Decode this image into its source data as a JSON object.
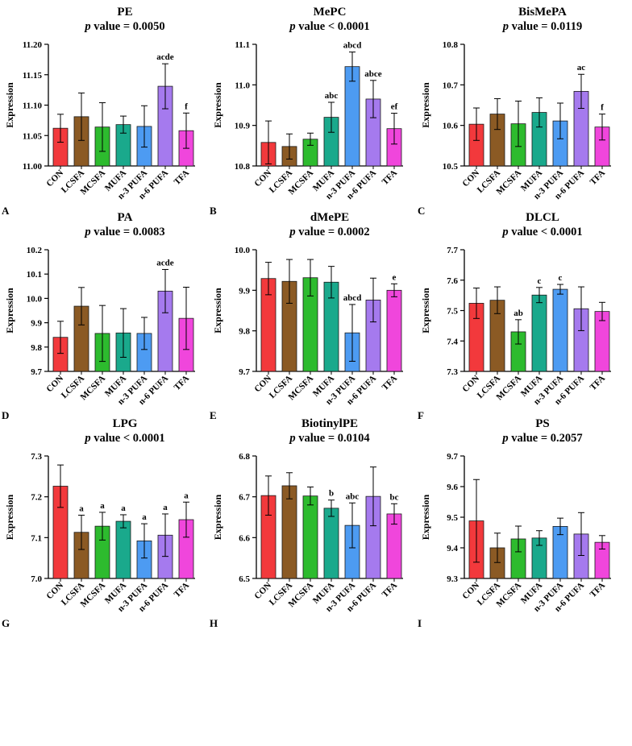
{
  "colors": [
    "#f2393c",
    "#8b5a24",
    "#2dbb2e",
    "#1aa98c",
    "#4d9bf2",
    "#a57aee",
    "#f046dc"
  ],
  "p_label": "p",
  "p_value_word": "value",
  "chart_data": [
    {
      "type": "bar",
      "panel": "A",
      "title": "PE",
      "p_text": "= 0.0050",
      "ylabel": "Expression",
      "categories": [
        "CON",
        "LCSFA",
        "MCSFA",
        "MUFA",
        "n-3 PUFA",
        "n-6 PUFA",
        "TFA"
      ],
      "values": [
        11.062,
        11.081,
        11.064,
        11.068,
        11.065,
        11.131,
        11.058
      ],
      "errors": [
        0.023,
        0.039,
        0.04,
        0.014,
        0.034,
        0.037,
        0.029
      ],
      "labels": [
        "",
        "",
        "",
        "",
        "",
        "acde",
        "f"
      ],
      "ylim": [
        11.0,
        11.2
      ],
      "yticks": [
        "11.00",
        "11.05",
        "11.10",
        "11.15",
        "11.20"
      ]
    },
    {
      "type": "bar",
      "panel": "B",
      "title": "MePC",
      "p_text": "< 0.0001",
      "ylabel": "Expression",
      "categories": [
        "CON",
        "LCSFA",
        "MCSFA",
        "MUFA",
        "n-3 PUFA",
        "n-6 PUFA",
        "TFA"
      ],
      "values": [
        10.858,
        10.848,
        10.866,
        10.92,
        11.045,
        10.965,
        10.892
      ],
      "errors": [
        0.053,
        0.031,
        0.015,
        0.037,
        0.036,
        0.046,
        0.038
      ],
      "labels": [
        "",
        "",
        "",
        "abc",
        "abcd",
        "abce",
        "ef"
      ],
      "ylim": [
        10.8,
        11.1
      ],
      "yticks": [
        "10.8",
        "10.9",
        "11.0",
        "11.1"
      ]
    },
    {
      "type": "bar",
      "panel": "C",
      "title": "BisMePA",
      "p_text": "= 0.0119",
      "ylabel": "Expression",
      "categories": [
        "CON",
        "LCSFA",
        "MCSFA",
        "MUFA",
        "n-3 PUFA",
        "n-6 PUFA",
        "TFA"
      ],
      "values": [
        10.603,
        10.628,
        10.604,
        10.632,
        10.611,
        10.684,
        10.596
      ],
      "errors": [
        0.04,
        0.038,
        0.056,
        0.036,
        0.044,
        0.042,
        0.032
      ],
      "labels": [
        "",
        "",
        "",
        "",
        "",
        "ac",
        "f"
      ],
      "ylim": [
        10.5,
        10.8
      ],
      "yticks": [
        "10.5",
        "10.6",
        "10.7",
        "10.8"
      ]
    },
    {
      "type": "bar",
      "panel": "D",
      "title": "PA",
      "p_text": "= 0.0083",
      "ylabel": "Expression",
      "categories": [
        "CON",
        "LCSFA",
        "MCSFA",
        "MUFA",
        "n-3 PUFA",
        "n-6 PUFA",
        "TFA"
      ],
      "values": [
        9.84,
        9.968,
        9.856,
        9.858,
        9.856,
        10.03,
        9.918
      ],
      "errors": [
        0.066,
        0.077,
        0.115,
        0.1,
        0.066,
        0.089,
        0.128
      ],
      "labels": [
        "",
        "",
        "",
        "",
        "",
        "acde",
        ""
      ],
      "ylim": [
        9.7,
        10.2
      ],
      "yticks": [
        "9.7",
        "9.8",
        "9.9",
        "10.0",
        "10.1",
        "10.2"
      ]
    },
    {
      "type": "bar",
      "panel": "E",
      "title": "dMePE",
      "p_text": "= 0.0002",
      "ylabel": "Expression",
      "categories": [
        "CON",
        "LCSFA",
        "MCSFA",
        "MUFA",
        "n-3 PUFA",
        "n-6 PUFA",
        "TFA"
      ],
      "values": [
        9.929,
        9.922,
        9.931,
        9.92,
        9.795,
        9.876,
        9.9
      ],
      "errors": [
        0.04,
        0.054,
        0.045,
        0.039,
        0.07,
        0.054,
        0.016
      ],
      "labels": [
        "",
        "",
        "",
        "",
        "abcd",
        "",
        "e"
      ],
      "ylim": [
        9.7,
        10.0
      ],
      "yticks": [
        "9.7",
        "9.8",
        "9.9",
        "10.0"
      ]
    },
    {
      "type": "bar",
      "panel": "F",
      "title": "DLCL",
      "p_text": "< 0.0001",
      "ylabel": "Expression",
      "categories": [
        "CON",
        "LCSFA",
        "MCSFA",
        "MUFA",
        "n-3 PUFA",
        "n-6 PUFA",
        "TFA"
      ],
      "values": [
        7.524,
        7.534,
        7.43,
        7.551,
        7.57,
        7.506,
        7.497
      ],
      "errors": [
        0.05,
        0.044,
        0.04,
        0.025,
        0.016,
        0.072,
        0.03
      ],
      "labels": [
        "",
        "",
        "ab",
        "c",
        "c",
        "",
        ""
      ],
      "ylim": [
        7.3,
        7.7
      ],
      "yticks": [
        "7.3",
        "7.4",
        "7.5",
        "7.6",
        "7.7"
      ]
    },
    {
      "type": "bar",
      "panel": "G",
      "title": "LPG",
      "p_text": "< 0.0001",
      "ylabel": "Expression",
      "categories": [
        "CON",
        "LCSFA",
        "MCSFA",
        "MUFA",
        "n-3 PUFA",
        "n-6 PUFA",
        "TFA"
      ],
      "values": [
        7.226,
        7.113,
        7.128,
        7.14,
        7.092,
        7.106,
        7.144
      ],
      "errors": [
        0.052,
        0.042,
        0.034,
        0.016,
        0.042,
        0.052,
        0.043
      ],
      "labels": [
        "",
        "a",
        "a",
        "a",
        "a",
        "a",
        "a"
      ],
      "ylim": [
        7.0,
        7.3
      ],
      "yticks": [
        "7.0",
        "7.1",
        "7.2",
        "7.3"
      ]
    },
    {
      "type": "bar",
      "panel": "H",
      "title": "BiotinylPE",
      "p_text": "= 0.0104",
      "ylabel": "Expression",
      "categories": [
        "CON",
        "LCSFA",
        "MCSFA",
        "MUFA",
        "n-3 PUFA",
        "n-6 PUFA",
        "TFA"
      ],
      "values": [
        6.703,
        6.727,
        6.702,
        6.672,
        6.63,
        6.701,
        6.658
      ],
      "errors": [
        0.048,
        0.032,
        0.022,
        0.02,
        0.055,
        0.072,
        0.025
      ],
      "labels": [
        "",
        "",
        "",
        "b",
        "abc",
        "",
        "bc"
      ],
      "ylim": [
        6.5,
        6.8
      ],
      "yticks": [
        "6.5",
        "6.6",
        "6.7",
        "6.8"
      ]
    },
    {
      "type": "bar",
      "panel": "I",
      "title": "PS",
      "p_text": "= 0.2057",
      "ylabel": "Expression",
      "categories": [
        "CON",
        "LCSFA",
        "MCSFA",
        "MUFA",
        "n-3 PUFA",
        "n-6 PUFA",
        "TFA"
      ],
      "values": [
        9.488,
        9.4,
        9.429,
        9.432,
        9.47,
        9.445,
        9.418
      ],
      "errors": [
        0.135,
        0.048,
        0.042,
        0.024,
        0.027,
        0.07,
        0.022
      ],
      "labels": [
        "",
        "",
        "",
        "",
        "",
        "",
        ""
      ],
      "ylim": [
        9.3,
        9.7
      ],
      "yticks": [
        "9.3",
        "9.4",
        "9.5",
        "9.6",
        "9.7"
      ]
    }
  ]
}
